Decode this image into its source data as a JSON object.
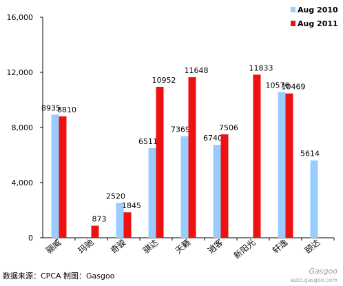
{
  "chart_data": {
    "type": "bar",
    "categories": [
      "骊威",
      "玛驰",
      "奇骏",
      "骐达",
      "天籁",
      "逍客",
      "新阳光",
      "轩逸",
      "颐达"
    ],
    "series": [
      {
        "name": "Aug 2010",
        "values": [
          8935,
          null,
          2520,
          6511,
          7369,
          6740,
          null,
          10576,
          5614
        ]
      },
      {
        "name": "Aug 2011",
        "values": [
          8810,
          873,
          1845,
          10952,
          11648,
          7506,
          11833,
          10469,
          null
        ]
      }
    ],
    "ylim": [
      0,
      16000
    ],
    "yticks": [
      "0",
      "4,000",
      "8,000",
      "12,000",
      "16,000"
    ],
    "ytick_values": [
      0,
      4000,
      8000,
      12000,
      16000
    ],
    "legend_position": "top-right",
    "grid": false,
    "colors": {
      "Aug 2010": "#99ccff",
      "Aug 2011": "#ee1111"
    }
  },
  "source_note": "数据来源：CPCA 制图：Gasgoo",
  "watermark": {
    "logo": "Gasgoo",
    "url": "auto.gasgoo.com"
  }
}
